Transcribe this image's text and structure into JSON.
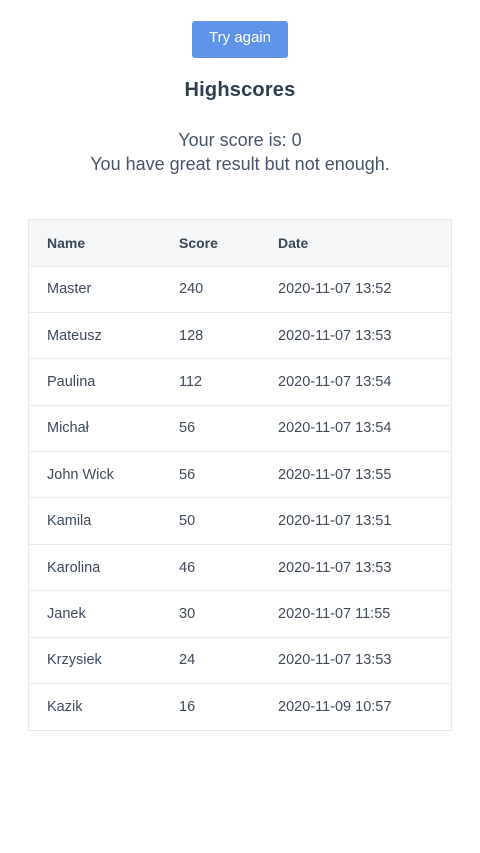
{
  "header": {
    "try_again_label": "Try again",
    "title": "Highscores",
    "score_text": "Your score is: 0",
    "message": "You have great result but not enough."
  },
  "table": {
    "columns": [
      "Name",
      "Score",
      "Date"
    ],
    "rows": [
      {
        "name": "Master",
        "score": "240",
        "date": "2020-11-07 13:52"
      },
      {
        "name": "Mateusz",
        "score": "128",
        "date": "2020-11-07 13:53"
      },
      {
        "name": "Paulina",
        "score": "112",
        "date": "2020-11-07 13:54"
      },
      {
        "name": "Michał",
        "score": "56",
        "date": "2020-11-07 13:54"
      },
      {
        "name": "John Wick",
        "score": "56",
        "date": "2020-11-07 13:55"
      },
      {
        "name": "Kamila",
        "score": "50",
        "date": "2020-11-07 13:51"
      },
      {
        "name": "Karolina",
        "score": "46",
        "date": "2020-11-07 13:53"
      },
      {
        "name": "Janek",
        "score": "30",
        "date": "2020-11-07 11:55"
      },
      {
        "name": "Krzysiek",
        "score": "24",
        "date": "2020-11-07 13:53"
      },
      {
        "name": "Kazik",
        "score": "16",
        "date": "2020-11-09 10:57"
      }
    ]
  },
  "colors": {
    "button_bg": "#5f93e8",
    "header_row_bg": "#f5f6f7",
    "text": "#334155"
  }
}
